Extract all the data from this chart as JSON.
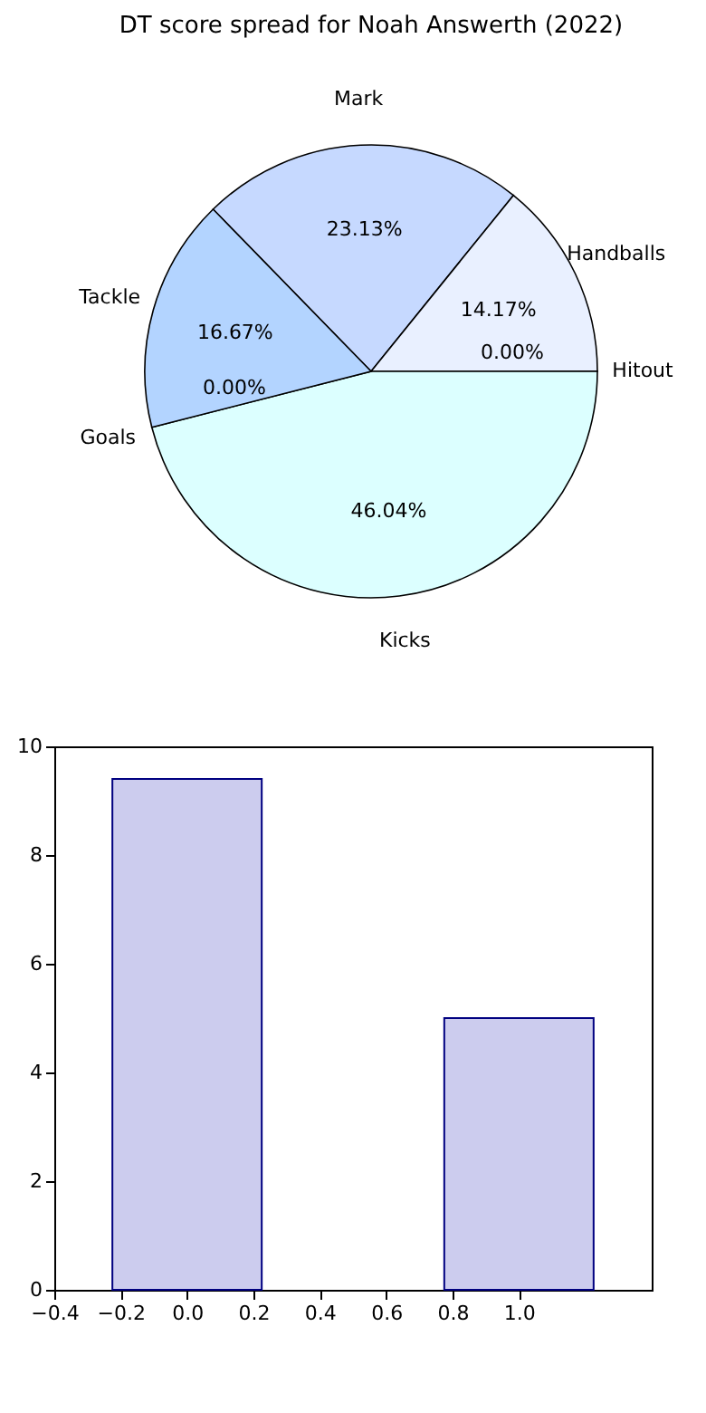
{
  "chart_data": [
    {
      "type": "pie",
      "title": "DT score spread for Noah Answerth (2022)",
      "categories": [
        "Mark",
        "Handballs",
        "Hitout",
        "Kicks",
        "Goals",
        "Tackle"
      ],
      "values": [
        23.13,
        14.17,
        0.0,
        46.04,
        0.0,
        16.67
      ],
      "value_labels": [
        "23.13%",
        "14.17%",
        "0.00%",
        "46.04%",
        "0.00%",
        "16.67%"
      ],
      "colors": [
        "#c6d9ff",
        "#e9f0ff",
        "#d0e4ff",
        "#dcffff",
        "#cce0ff",
        "#b3d4ff"
      ]
    },
    {
      "type": "bar",
      "x": [
        0,
        1
      ],
      "values": [
        9.4,
        5.0
      ],
      "color": "#ccccee",
      "xlim": [
        -0.4,
        1.4
      ],
      "xticks": [
        {
          "value": -0.4,
          "label": "−0.4"
        },
        {
          "value": -0.2,
          "label": "−0.2"
        },
        {
          "value": 0,
          "label": "0.0"
        },
        {
          "value": 0.2,
          "label": "0.2"
        },
        {
          "value": 0.4,
          "label": "0.4"
        },
        {
          "value": 0.6,
          "label": "0.6"
        },
        {
          "value": 0.8,
          "label": "0.8"
        },
        {
          "value": 1,
          "label": "1.0"
        }
      ],
      "ylim": [
        0,
        10
      ],
      "yticks": [
        0,
        2,
        4,
        6,
        8,
        10
      ]
    }
  ]
}
